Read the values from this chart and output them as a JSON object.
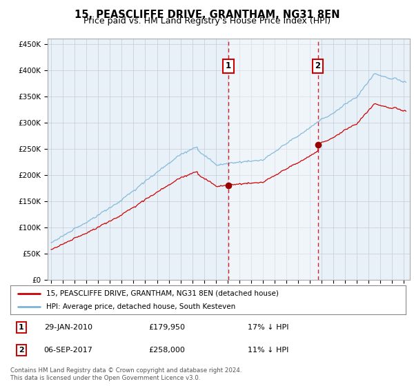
{
  "title": "15, PEASCLIFFE DRIVE, GRANTHAM, NG31 8EN",
  "subtitle": "Price paid vs. HM Land Registry's House Price Index (HPI)",
  "ylim": [
    0,
    460000
  ],
  "yticks": [
    0,
    50000,
    100000,
    150000,
    200000,
    250000,
    300000,
    350000,
    400000,
    450000
  ],
  "ytick_labels": [
    "£0",
    "£50K",
    "£100K",
    "£150K",
    "£200K",
    "£250K",
    "£300K",
    "£350K",
    "£400K",
    "£450K"
  ],
  "hpi_color": "#7ab4d8",
  "price_color": "#cc0000",
  "annotation_color": "#cc0000",
  "plot_bg_color": "#e8f0f8",
  "grid_color": "#c8c8d8",
  "purchase1_price": 179950,
  "purchase1_year": 2010.07,
  "purchase2_price": 258000,
  "purchase2_year": 2017.67,
  "legend_house_label": "15, PEASCLIFFE DRIVE, GRANTHAM, NG31 8EN (detached house)",
  "legend_hpi_label": "HPI: Average price, detached house, South Kesteven",
  "annotation1_text": "29-JAN-2010",
  "annotation1_price": "£179,950",
  "annotation1_hpi": "17% ↓ HPI",
  "annotation2_text": "06-SEP-2017",
  "annotation2_price": "£258,000",
  "annotation2_hpi": "11% ↓ HPI",
  "footer": "Contains HM Land Registry data © Crown copyright and database right 2024.\nThis data is licensed under the Open Government Licence v3.0.",
  "title_fontsize": 10.5,
  "subtitle_fontsize": 9
}
